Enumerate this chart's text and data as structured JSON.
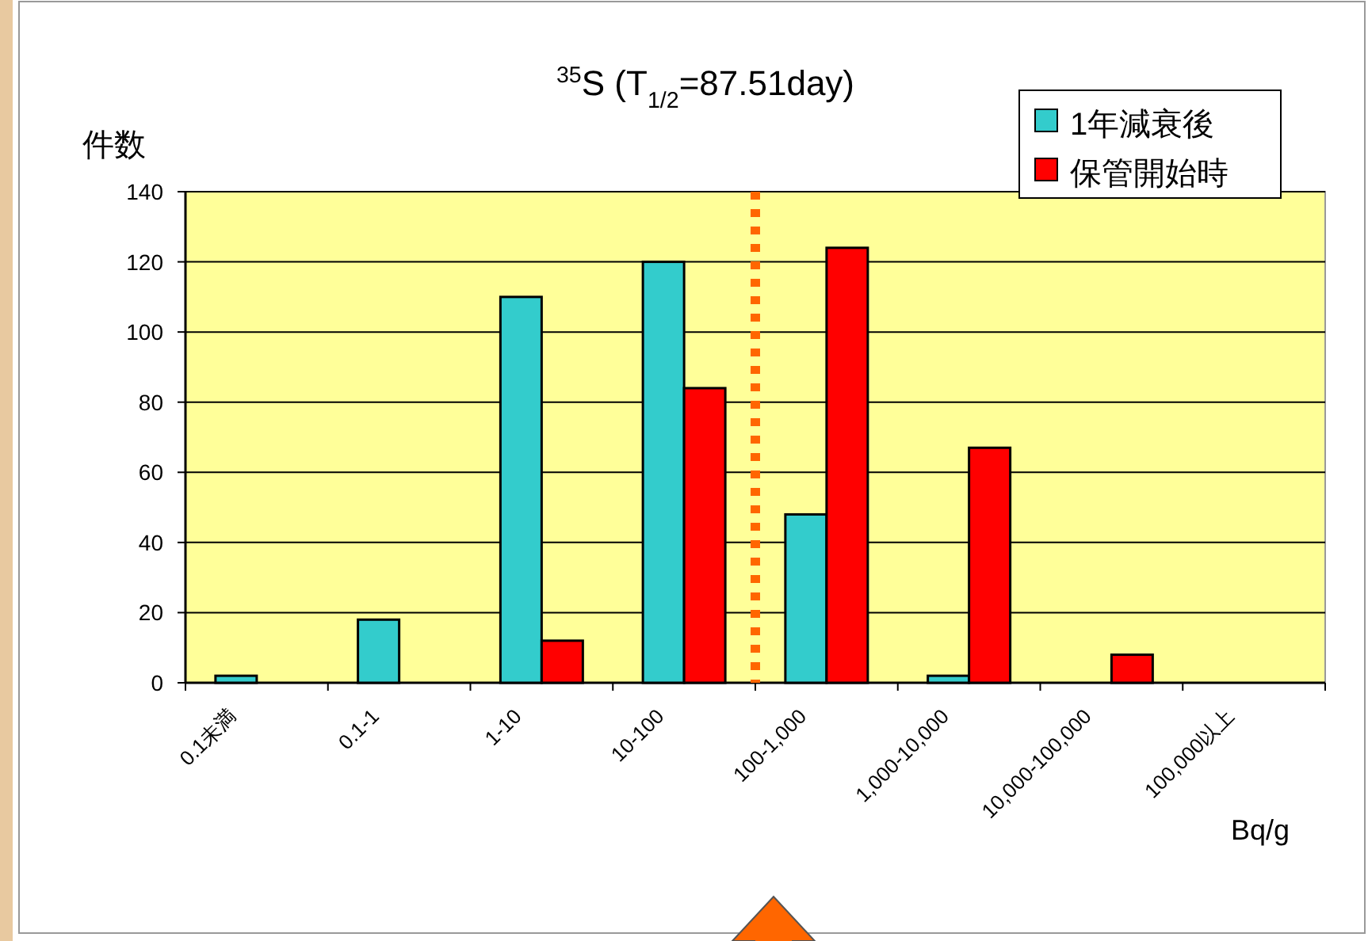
{
  "chart_data": {
    "type": "bar",
    "title": "$^{35}$S (T$_{1/2}$=87.51day)",
    "ylabel": "件数",
    "xlabel": "Bq/g",
    "categories": [
      "0.1未満",
      "0.1-1",
      "1-10",
      "10-100",
      "100-1,000",
      "1,000-10,000",
      "10,000-100,000",
      "100,000以上"
    ],
    "series": [
      {
        "name": "1年減衰後",
        "color": "#33cccc",
        "values": [
          2,
          18,
          110,
          120,
          48,
          2,
          0,
          0
        ]
      },
      {
        "name": "保管開始時",
        "color": "#ff0000",
        "values": [
          0,
          0,
          12,
          84,
          124,
          67,
          8,
          0
        ]
      }
    ],
    "ylim": [
      0,
      140
    ],
    "yticks": [
      0,
      20,
      40,
      60,
      80,
      100,
      120,
      140
    ],
    "grid": "y",
    "legend": "top right",
    "ref_lines": [
      {
        "axis": "x",
        "value": "100-1,000",
        "color": "#ff6600",
        "line_style": "dotted"
      }
    ]
  }
}
